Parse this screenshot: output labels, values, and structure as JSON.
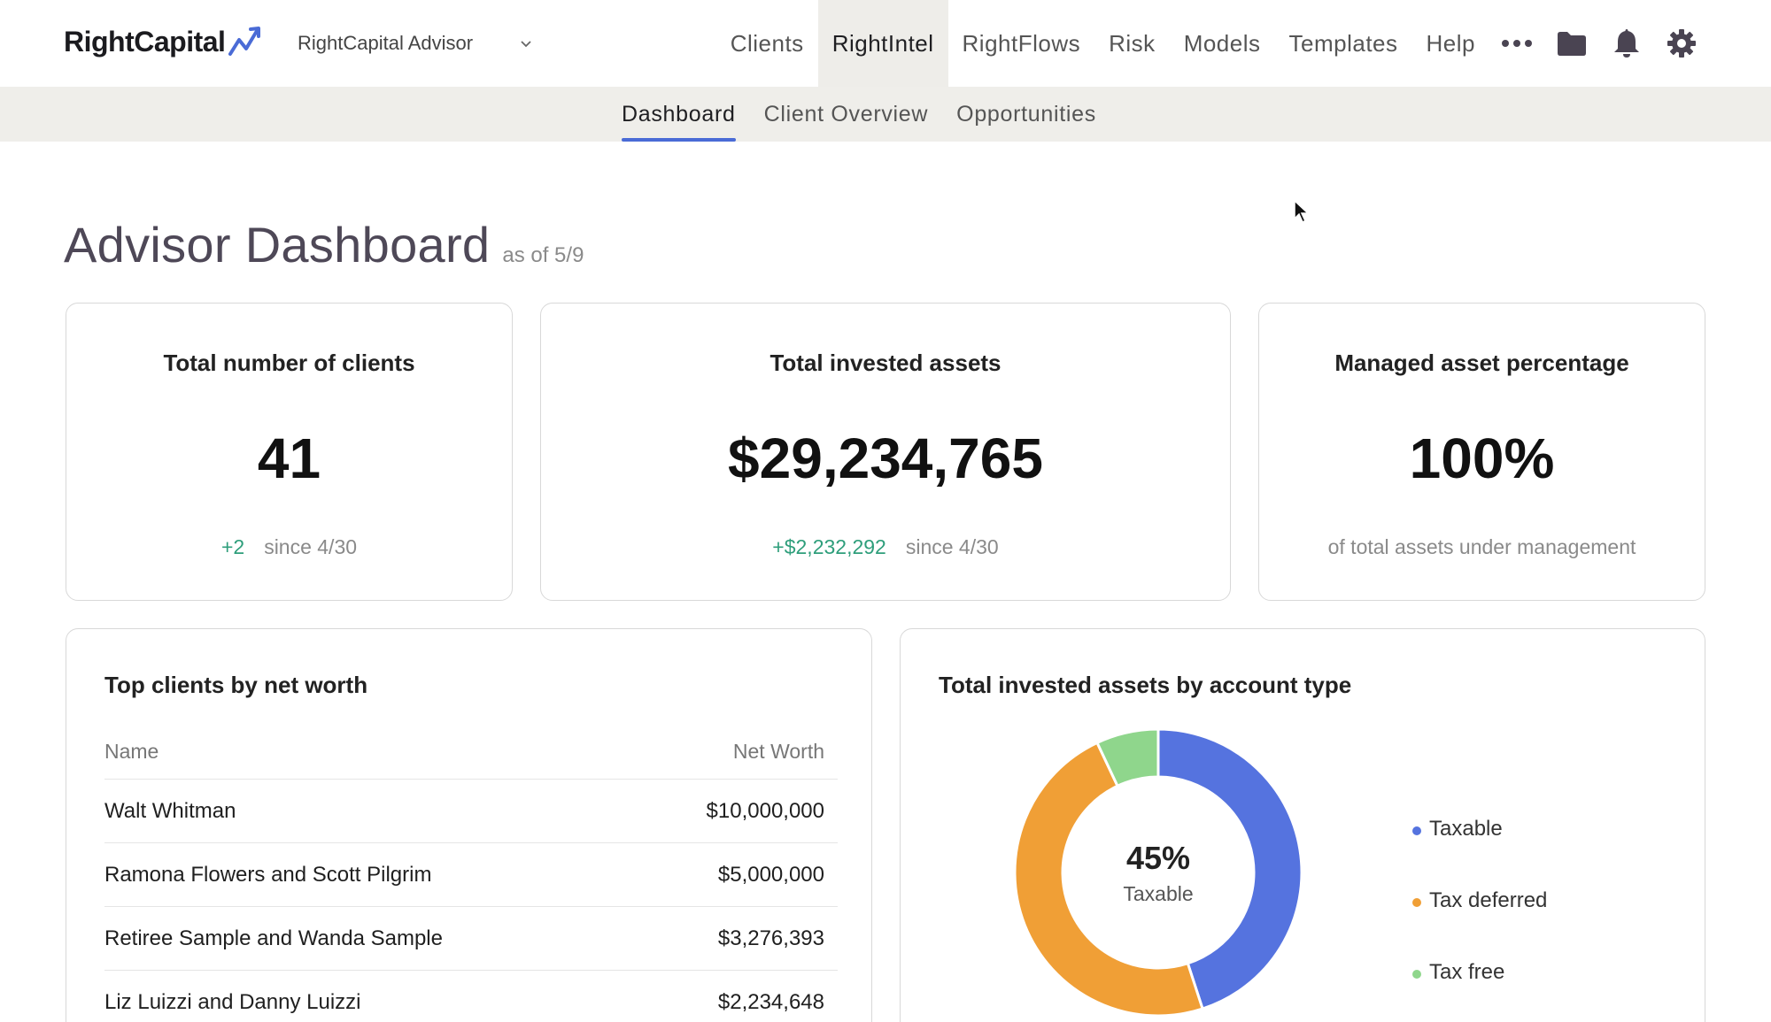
{
  "app": {
    "logo_text": "RightCapital",
    "advisor_select": "RightCapital Advisor"
  },
  "nav": {
    "items": [
      "Clients",
      "RightIntel",
      "RightFlows",
      "Risk",
      "Models",
      "Templates",
      "Help"
    ],
    "active": "RightIntel",
    "icons": [
      "more-icon",
      "folder-icon",
      "bell-icon",
      "gear-icon"
    ]
  },
  "subnav": {
    "tabs": [
      "Dashboard",
      "Client Overview",
      "Opportunities"
    ],
    "active": "Dashboard"
  },
  "page": {
    "title": "Advisor Dashboard",
    "as_of": "as of 5/9"
  },
  "stats": {
    "clients": {
      "title": "Total number of clients",
      "value": "41",
      "delta": "+2",
      "since": "since 4/30"
    },
    "assets": {
      "title": "Total invested assets",
      "value": "$29,234,765",
      "delta": "+$2,232,292",
      "since": "since 4/30"
    },
    "managed": {
      "title": "Managed asset percentage",
      "value": "100%",
      "note": "of total assets under management"
    }
  },
  "top_clients": {
    "title": "Top clients by net worth",
    "columns": [
      "Name",
      "Net Worth"
    ],
    "rows": [
      {
        "name": "Walt Whitman",
        "net_worth": "$10,000,000"
      },
      {
        "name": "Ramona Flowers and Scott Pilgrim",
        "net_worth": "$5,000,000"
      },
      {
        "name": "Retiree Sample and Wanda Sample",
        "net_worth": "$3,276,393"
      },
      {
        "name": "Liz Luizzi and Danny Luizzi",
        "net_worth": "$2,234,648"
      }
    ]
  },
  "account_types": {
    "title": "Total invested assets by account type",
    "center_pct": "45%",
    "center_label": "Taxable",
    "legend": [
      "Taxable",
      "Tax deferred",
      "Tax free"
    ]
  },
  "colors": {
    "accent": "#4a6bd6",
    "positive": "#2e9e7b",
    "taxable": "#5573df",
    "tax_deferred": "#f09f36",
    "tax_free": "#8fd68c"
  },
  "chart_data": {
    "type": "pie",
    "categories": [
      "Taxable",
      "Tax deferred",
      "Tax free"
    ],
    "values": [
      45,
      48,
      7
    ],
    "title": "Total invested assets by account type"
  }
}
